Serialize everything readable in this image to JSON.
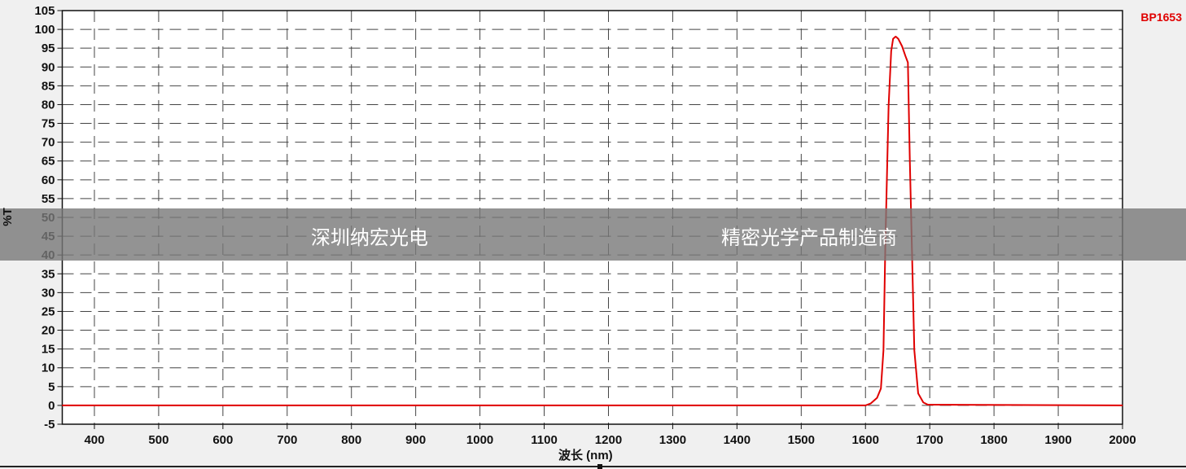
{
  "chart_data": {
    "type": "line",
    "title": "",
    "xlabel": "波长 (nm)",
    "ylabel": "%T",
    "xlim": [
      350,
      2000
    ],
    "ylim": [
      -5,
      105
    ],
    "xticks": [
      400,
      500,
      600,
      700,
      800,
      900,
      1000,
      1100,
      1200,
      1300,
      1400,
      1500,
      1600,
      1700,
      1800,
      1900,
      2000
    ],
    "yticks": [
      -5,
      0,
      5,
      10,
      15,
      20,
      25,
      30,
      35,
      40,
      45,
      50,
      55,
      60,
      65,
      70,
      75,
      80,
      85,
      90,
      95,
      100,
      105
    ],
    "grid": true,
    "series": [
      {
        "name": "BP1653",
        "color": "#e00000",
        "x": [
          350,
          1600,
          1608,
          1618,
          1624,
          1628,
          1631,
          1636,
          1640,
          1643,
          1647,
          1651,
          1657,
          1662,
          1666,
          1669,
          1673,
          1676,
          1682,
          1690,
          1697,
          2000
        ],
        "y": [
          0,
          0,
          0.5,
          2,
          4.5,
          14.7,
          43.5,
          79.7,
          94.2,
          97.5,
          98.1,
          97.5,
          95.5,
          93,
          91.2,
          65.2,
          36.4,
          14.7,
          3.2,
          0.8,
          0.2,
          0
        ]
      }
    ],
    "legend": "top-right"
  },
  "watermark": {
    "left": "深圳纳宏光电",
    "right": "精密光学产品制造商"
  }
}
